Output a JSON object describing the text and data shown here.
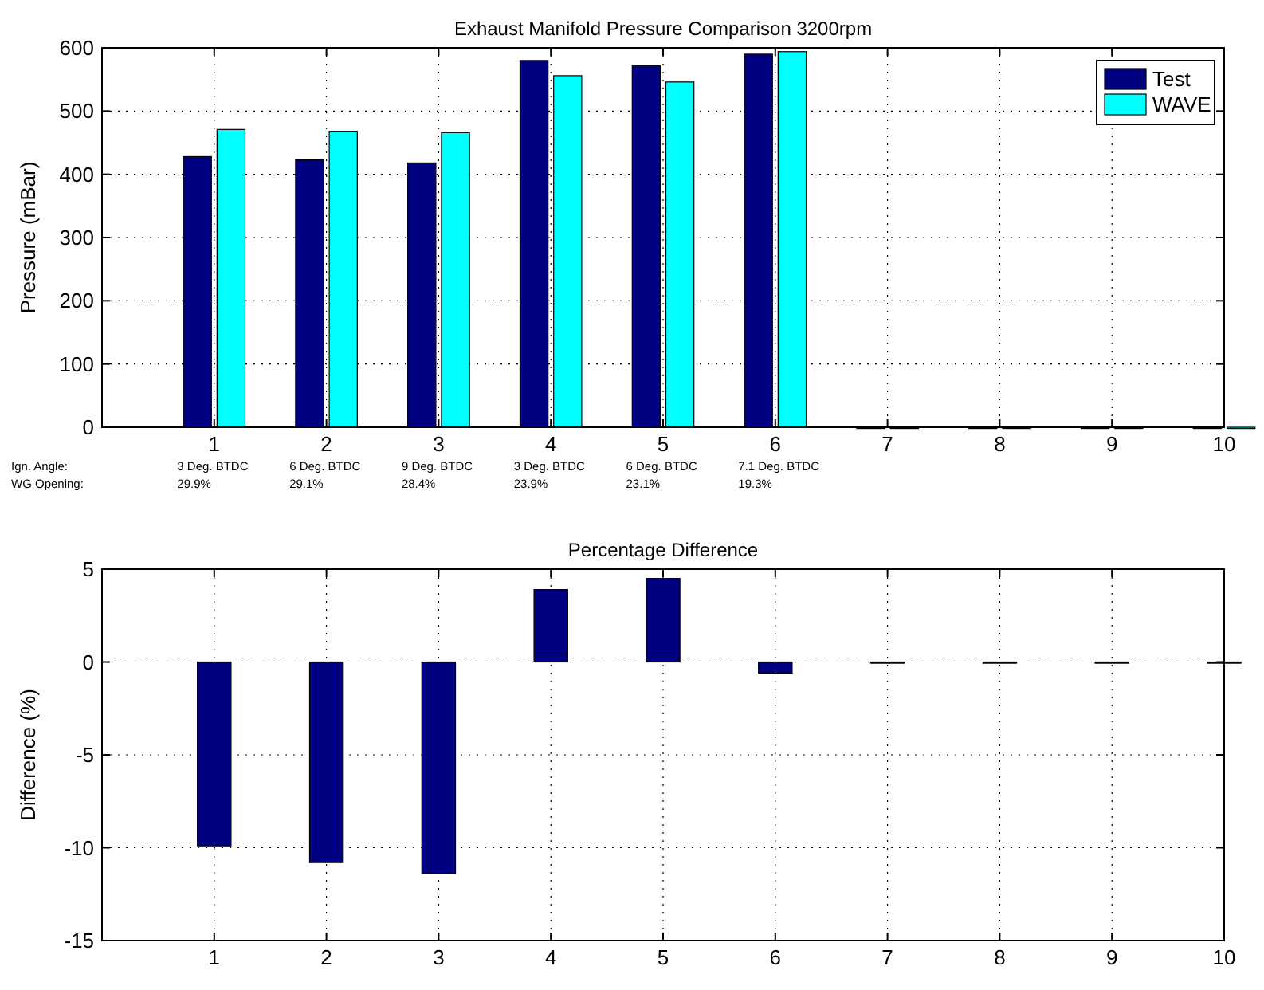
{
  "chart_data": [
    {
      "type": "bar",
      "title": "Exhaust Manifold Pressure Comparison 3200rpm",
      "ylabel": "Pressure (mBar)",
      "x": [
        1,
        2,
        3,
        4,
        5,
        6,
        7,
        8,
        9,
        10
      ],
      "xlim": [
        0,
        10
      ],
      "xticks": [
        1,
        2,
        3,
        4,
        5,
        6,
        7,
        8,
        9,
        10
      ],
      "ylim": [
        0,
        600
      ],
      "yticks": [
        0,
        100,
        200,
        300,
        400,
        500,
        600
      ],
      "grid": true,
      "legend": "top right",
      "series": [
        {
          "name": "Test",
          "color": "#000080",
          "values": [
            428,
            423,
            418,
            580,
            572,
            590,
            0,
            0,
            0,
            0
          ]
        },
        {
          "name": "WAVE",
          "color": "#00ffff",
          "values": [
            471,
            468,
            466,
            556,
            546,
            594,
            0,
            0,
            0,
            0
          ]
        }
      ],
      "annotations": [
        "Ign. Angle:",
        "3 Deg. BTDC",
        "6 Deg. BTDC",
        "9 Deg. BTDC",
        "3 Deg. BTDC",
        "6 Deg. BTDC",
        "7.1 Deg. BTDC",
        "WG Opening:",
        "29.9%",
        "29.1%",
        "28.4%",
        "23.9%",
        "23.1%",
        "19.3%"
      ]
    },
    {
      "type": "bar",
      "title": "Percentage Difference",
      "ylabel": "Difference (%)",
      "x": [
        1,
        2,
        3,
        4,
        5,
        6,
        7,
        8,
        9,
        10
      ],
      "xlim": [
        0,
        10
      ],
      "xticks": [
        1,
        2,
        3,
        4,
        5,
        6,
        7,
        8,
        9,
        10
      ],
      "ylim": [
        -15,
        5
      ],
      "yticks": [
        -15,
        -10,
        -5,
        0,
        5
      ],
      "grid": true,
      "series": [
        {
          "color": "#000080",
          "values": [
            -9.9,
            -10.8,
            -11.4,
            3.9,
            4.5,
            -0.6,
            0,
            0,
            0,
            0
          ]
        }
      ]
    }
  ]
}
